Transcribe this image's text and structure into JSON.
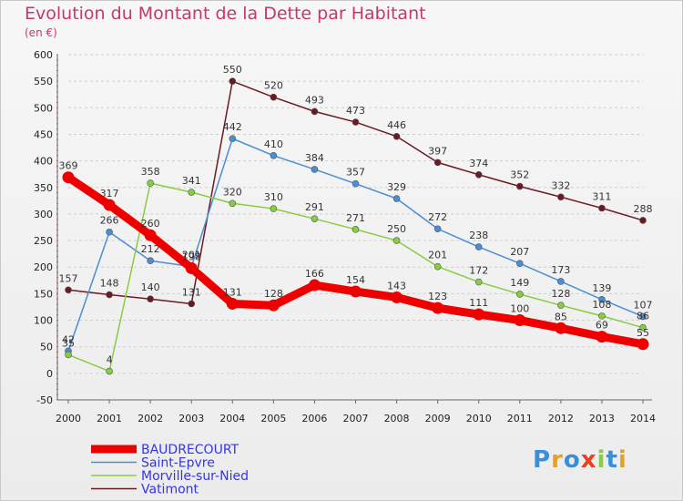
{
  "chart_data": {
    "type": "line",
    "title": "Evolution du Montant de la Dette par Habitant",
    "subtitle": "(en €)",
    "xlabel": "",
    "ylabel": "",
    "ylim": [
      -50,
      600
    ],
    "yticks": [
      -50,
      0,
      50,
      100,
      150,
      200,
      250,
      300,
      350,
      400,
      450,
      500,
      550,
      600
    ],
    "categories": [
      "2000",
      "2001",
      "2002",
      "2003",
      "2004",
      "2005",
      "2006",
      "2007",
      "2008",
      "2009",
      "2010",
      "2011",
      "2012",
      "2013",
      "2014"
    ],
    "grid": "horizontal dashed",
    "legend_position": "bottom-left",
    "series": [
      {
        "name": "Vatimont",
        "color": "#6b1a24",
        "values": [
          157,
          148,
          140,
          131,
          550,
          520,
          493,
          473,
          446,
          397,
          374,
          352,
          332,
          311,
          288
        ],
        "segments": [
          [
            0,
            3
          ],
          [
            3,
            14
          ]
        ]
      },
      {
        "name": "Saint-Epvre",
        "color": "#4a8ed4",
        "values": [
          42,
          266,
          212,
          201,
          442,
          410,
          384,
          357,
          329,
          272,
          238,
          207,
          173,
          139,
          107
        ]
      },
      {
        "name": "Morville-sur-Nied",
        "color": "#88cc44",
        "values": [
          35,
          4,
          358,
          341,
          320,
          310,
          291,
          271,
          250,
          201,
          172,
          149,
          128,
          108,
          86
        ]
      },
      {
        "name": "BAUDRECOURT",
        "color": "#ee0000",
        "values": [
          369,
          317,
          260,
          198,
          131,
          128,
          166,
          154,
          143,
          123,
          111,
          100,
          85,
          69,
          55
        ],
        "emphasis": true
      }
    ]
  },
  "legend": {
    "items": [
      {
        "label": "BAUDRECOURT",
        "color": "#ee0000"
      },
      {
        "label": "Saint-Epvre",
        "color": "#4a8ed4"
      },
      {
        "label": "Morville-sur-Nied",
        "color": "#88cc44"
      },
      {
        "label": "Vatimont",
        "color": "#6b1a24"
      }
    ]
  },
  "logo": {
    "text": "Proxiti"
  }
}
